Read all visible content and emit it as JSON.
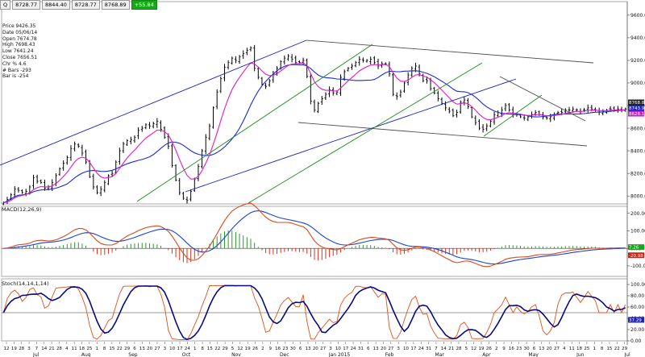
{
  "toolbar": {
    "symbol_btn": "Q",
    "open": "8728.77",
    "high": "8844.40",
    "low": "8728.77",
    "close": "8768.89",
    "change": "+55.84"
  },
  "info_panel": {
    "price": "Price 9426.35",
    "date": "Date 05/06/14",
    "open": "Open 7674.78",
    "high": "High 7698.43",
    "low": "Low 7641.24",
    "close": "Close 7656.51",
    "chg_pct": "Chr % 4.6",
    "bars": "# Bars -293",
    "bar_no": "Bar is -254"
  },
  "macd_label": "MACD(12,26,9)",
  "stoch_label": "Stoch(14,14,1,14)",
  "colors": {
    "price_bars": "#000000",
    "ma_fast": "#e01ac8",
    "ma_slow": "#1a2ad8",
    "channel_blue": "#1a20c0",
    "channel_green": "#1a8a1a",
    "channel_gray": "#505050",
    "macd_line": "#d84a1a",
    "signal_line": "#1a44d8",
    "hist_pos": "#2a9a2a",
    "hist_neg": "#e0301a",
    "stoch_k": "#e0501a",
    "stoch_d": "#0a0a80",
    "marker_price": "#202020",
    "marker_blue": "#2020c0",
    "marker_pink": "#c020c0",
    "marker_green": "#19a81b",
    "marker_red": "#d02010"
  },
  "chart_data": [
    {
      "type": "line",
      "panel": "price",
      "y_ticks": [
        "9600.00",
        "9400.00",
        "9200.00",
        "9000.00",
        "8800.00",
        "8600.00",
        "8400.00",
        "8200.00",
        "8000.00"
      ],
      "ylim": [
        7930,
        9720
      ],
      "last_value_markers": [
        {
          "label": "8768.89",
          "color_key": "marker_price"
        },
        {
          "label": "8743.92",
          "color_key": "marker_blue"
        },
        {
          "label": "8628.17",
          "color_key": "marker_pink"
        }
      ],
      "x": [
        0,
        2,
        4,
        6,
        8,
        10,
        12,
        14,
        16,
        18,
        20,
        22,
        24,
        26,
        28,
        30,
        32,
        34,
        36,
        38,
        40,
        42,
        44,
        46,
        48,
        50,
        52,
        54,
        56,
        58,
        60,
        62,
        64,
        66,
        68,
        70,
        72,
        74,
        76,
        78,
        80,
        82,
        84,
        86,
        88,
        90,
        92,
        94,
        96,
        98,
        100,
        102,
        104,
        106,
        108,
        110,
        112,
        114,
        116,
        118,
        120,
        122,
        124,
        126,
        128,
        130,
        132,
        134,
        136,
        138,
        140,
        142,
        144,
        146,
        148,
        150,
        152,
        154,
        156,
        158,
        160,
        162,
        164,
        166,
        168,
        170,
        172,
        174,
        176,
        178,
        180,
        182,
        184,
        186,
        188,
        190,
        192,
        194,
        196,
        198,
        200,
        202,
        204,
        206,
        208,
        210,
        212,
        214,
        216,
        218,
        220,
        222,
        224,
        226,
        228,
        230,
        232,
        234,
        236,
        238,
        240,
        242,
        244,
        246,
        248,
        250,
        252,
        254,
        256,
        258,
        260,
        262,
        264,
        266,
        268,
        270,
        272,
        274,
        276,
        278,
        280,
        282,
        284,
        286,
        288,
        290,
        292,
        294,
        296,
        298,
        300,
        302,
        304,
        306,
        308,
        310,
        312,
        314,
        316,
        318,
        320,
        322,
        324,
        326,
        328,
        330,
        332
      ],
      "series": [
        {
          "name": "close",
          "color_key": "price_bars",
          "values": [
            7940,
            7970,
            8010,
            8060,
            8050,
            8030,
            8040,
            8080,
            8160,
            8130,
            8120,
            8070,
            8080,
            8120,
            8180,
            8240,
            8290,
            8340,
            8420,
            8460,
            8440,
            8380,
            8300,
            8170,
            8080,
            8030,
            8060,
            8120,
            8180,
            8200,
            8300,
            8400,
            8460,
            8490,
            8500,
            8520,
            8580,
            8600,
            8630,
            8620,
            8640,
            8660,
            8590,
            8520,
            8440,
            8270,
            8140,
            8030,
            7980,
            7960,
            8040,
            8150,
            8260,
            8400,
            8520,
            8620,
            8780,
            8920,
            9040,
            9140,
            9180,
            9220,
            9200,
            9230,
            9260,
            9290,
            9310,
            9130,
            9050,
            8990,
            8970,
            9020,
            9080,
            9130,
            9190,
            9220,
            9240,
            9210,
            9180,
            9180,
            9200,
            9060,
            8840,
            8760,
            8820,
            8860,
            8900,
            8940,
            8910,
            8920,
            9050,
            9100,
            9130,
            9150,
            9180,
            9210,
            9200,
            9200,
            9210,
            9180,
            9150,
            9170,
            9170,
            9080,
            8900,
            8880,
            8920,
            9000,
            9070,
            9130,
            9150,
            9080,
            9020,
            9020,
            8950,
            8910,
            8860,
            8820,
            8780,
            8750,
            8710,
            8740,
            8830,
            8850,
            8790,
            8700,
            8650,
            8600,
            8590,
            8620,
            8660,
            8720,
            8740,
            8760,
            8800,
            8760,
            8720,
            8720,
            8700,
            8690,
            8700,
            8720,
            8740,
            8720,
            8700,
            8690,
            8700,
            8720,
            8740,
            8740,
            8760,
            8760,
            8770,
            8760,
            8750,
            8760,
            8780,
            8770,
            8760,
            8740,
            8750,
            8760,
            8770,
            8760,
            8770,
            8760,
            8770
          ]
        }
      ]
    },
    {
      "type": "line",
      "panel": "macd",
      "title": "MACD(12,26,9)",
      "y_ticks": [
        "200.00",
        "100.00",
        "0.00",
        "-100.00"
      ],
      "ylim": [
        -160,
        240
      ],
      "last_value_markers": [
        {
          "label": "7.26",
          "color_key": "marker_green"
        },
        {
          "label": "-20.98",
          "color_key": "marker_red"
        }
      ]
    },
    {
      "type": "line",
      "panel": "stochastic",
      "title": "Stoch(14,14,1,14)",
      "y_ticks": [
        "100.00",
        "80.00",
        "60.00",
        "40.00",
        "20.00",
        "0.00"
      ],
      "ylim": [
        0,
        110
      ],
      "last_value_markers": [
        {
          "label": "37.29",
          "color_key": "marker_blue"
        }
      ]
    }
  ],
  "x_axis": {
    "day_ticks": [
      "12",
      "19",
      "28",
      "3",
      "7",
      "14",
      "21",
      "28",
      "4",
      "11",
      "18",
      "25",
      "1",
      "8",
      "15",
      "22",
      "29",
      "6",
      "13",
      "20",
      "27",
      "3",
      "10",
      "17",
      "24",
      "1",
      "8",
      "15",
      "22",
      "29",
      "5",
      "12",
      "19",
      "26",
      "2",
      "9",
      "16",
      "23",
      "30",
      "6",
      "13",
      "20",
      "27",
      "3",
      "10",
      "17",
      "24",
      "31",
      "6",
      "13",
      "20",
      "27",
      "3",
      "10",
      "17",
      "24",
      "31",
      "7",
      "14",
      "21",
      "28",
      "5",
      "12",
      "19",
      "26",
      "2",
      "9",
      "16",
      "23",
      "30",
      "6",
      "13",
      "20",
      "27",
      "4",
      "11",
      "18",
      "25",
      "1",
      "8",
      "15",
      "22",
      "29"
    ],
    "month_labels": [
      "Jul",
      "Aug",
      "Sep",
      "Oct",
      "Nov",
      "Dec",
      "Jan 2015",
      "Feb",
      "Mar",
      "Apr",
      "May",
      "Jun",
      "Jul"
    ]
  }
}
